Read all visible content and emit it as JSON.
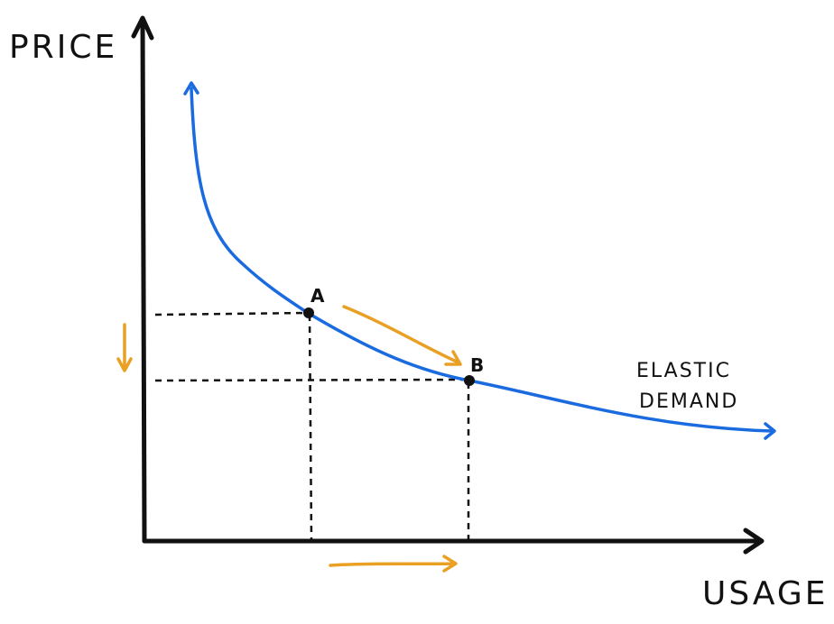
{
  "axes": {
    "y_label": "PRICE",
    "x_label": "USAGE"
  },
  "points": [
    {
      "label": "A"
    },
    {
      "label": "B"
    }
  ],
  "curve": {
    "label_lines": [
      "ELASTIC",
      "DEMAND"
    ]
  }
}
